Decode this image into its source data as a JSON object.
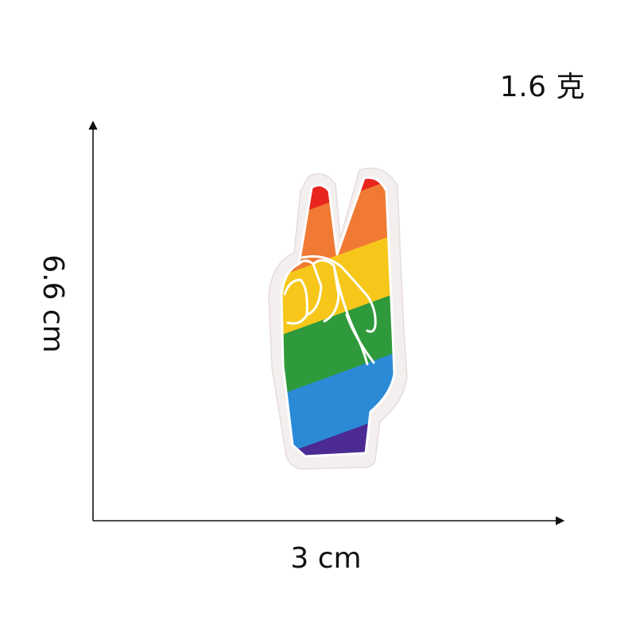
{
  "weight_label": "1.6 克",
  "dimensions": {
    "width_label": "3 cm",
    "height_label": "6.6 cm"
  },
  "patch": {
    "subject": "rainbow peace-sign hand embroidered patch",
    "stripe_colors": [
      "#e8261e",
      "#f07a34",
      "#f6c71a",
      "#2f9a3c",
      "#2b8ad6",
      "#4b2a92"
    ],
    "border_color": "#f4efef",
    "stitch_color": "#ffffff"
  }
}
